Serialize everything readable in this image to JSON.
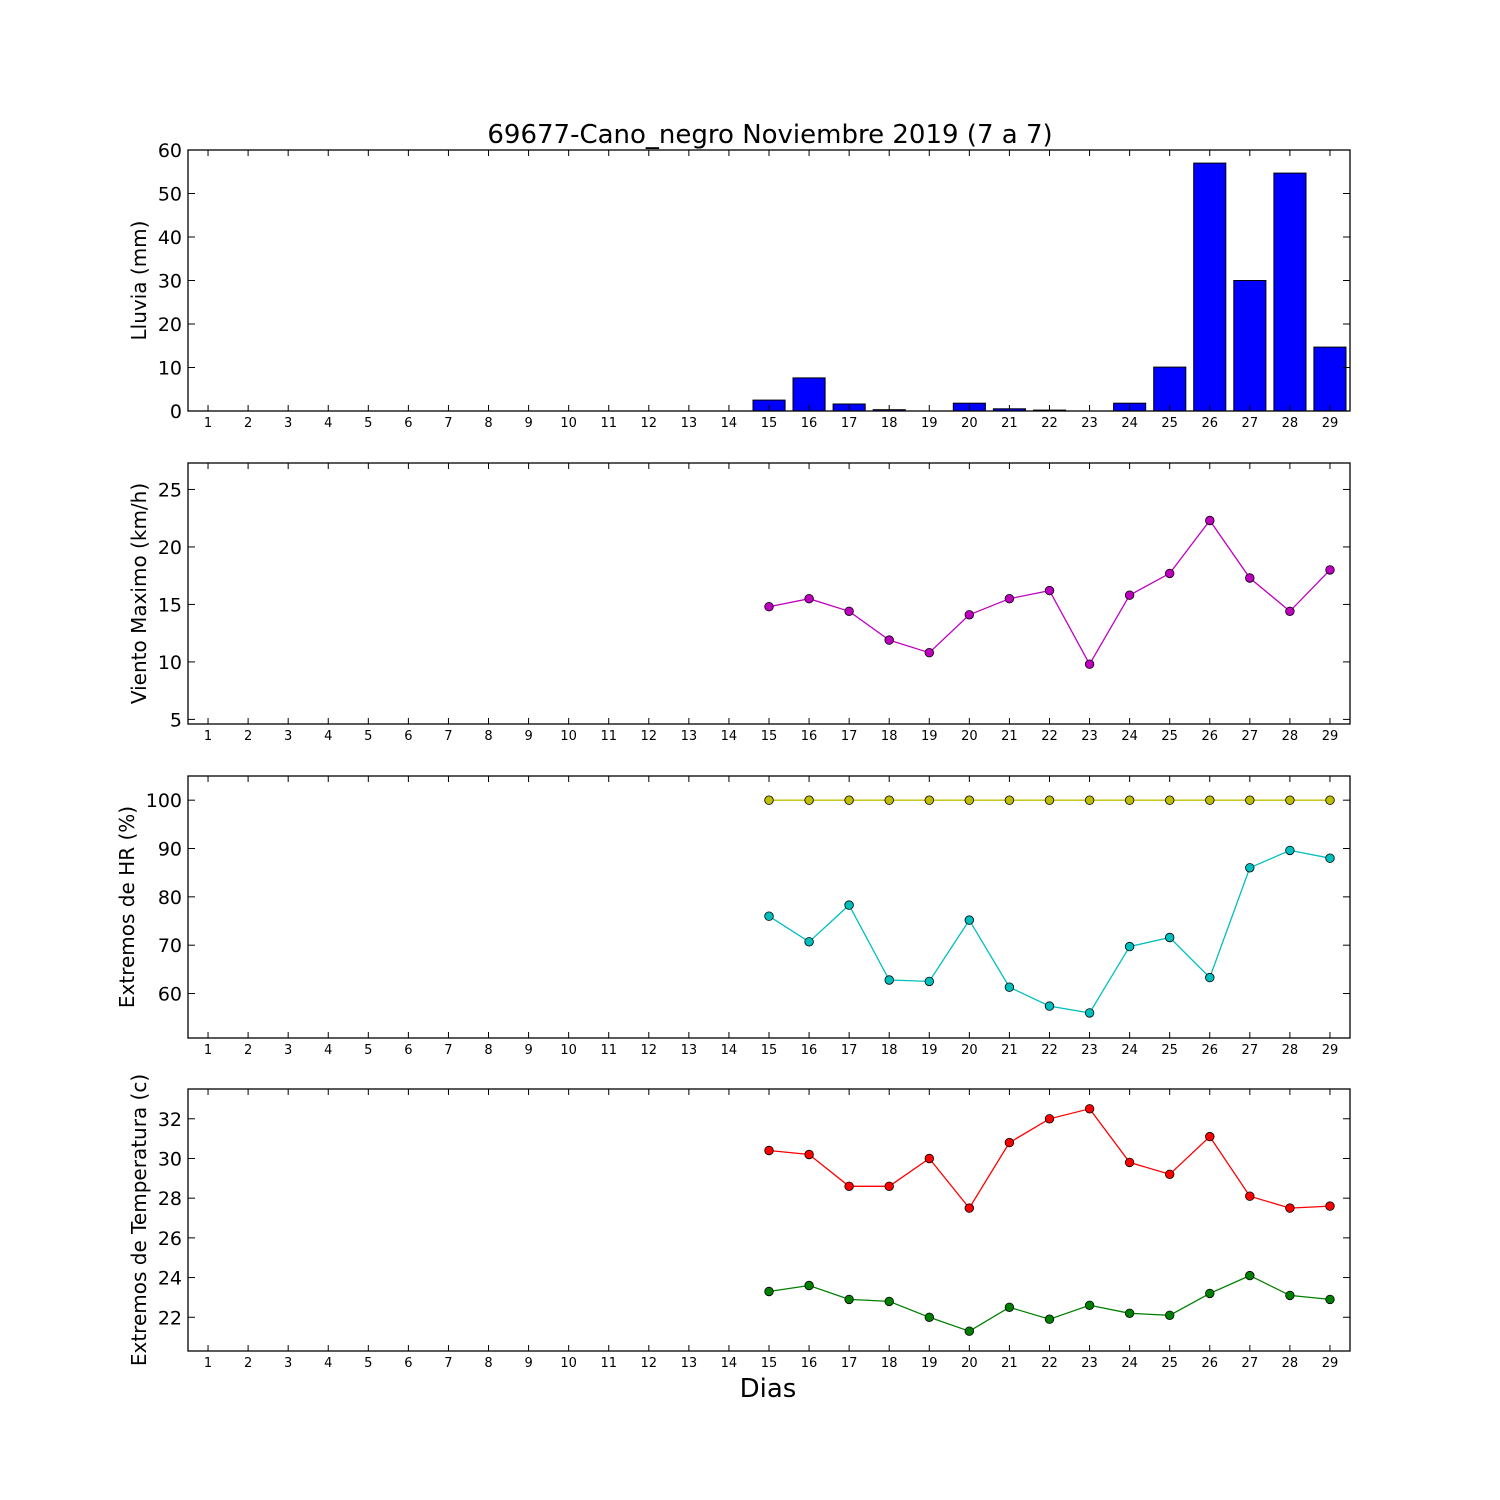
{
  "title": "69677-Cano_negro Noviembre 2019  (7 a 7)",
  "xlabel": "Dias",
  "colors": {
    "rain": "#0000ff",
    "wind": "#bf00bf",
    "hr_max": "#bfbf00",
    "hr_min": "#00bfbf",
    "temp_max": "#ff0000",
    "temp_min": "#008000"
  },
  "chart_data": [
    {
      "type": "bar",
      "ylabel": "Lluvia (mm)",
      "ylim": [
        0,
        60
      ],
      "yticks": [
        0,
        10,
        20,
        30,
        40,
        50,
        60
      ],
      "xlim": [
        0.5,
        29.5
      ],
      "x_ticks": [
        1,
        2,
        3,
        4,
        5,
        6,
        7,
        8,
        9,
        10,
        11,
        12,
        13,
        14,
        15,
        16,
        17,
        18,
        19,
        20,
        21,
        22,
        23,
        24,
        25,
        26,
        27,
        28,
        29
      ],
      "series": [
        {
          "color_key": "rain",
          "x": [
            15,
            16,
            17,
            18,
            19,
            20,
            21,
            22,
            23,
            24,
            25,
            26,
            27,
            28,
            29
          ],
          "values": [
            2.5,
            7.6,
            1.6,
            0.3,
            0.0,
            1.8,
            0.5,
            0.2,
            0.0,
            1.8,
            10.1,
            57.0,
            30.0,
            54.7,
            14.7
          ]
        }
      ]
    },
    {
      "type": "line",
      "ylabel": "Viento Maximo (km/h)",
      "ylim": [
        4.6,
        27.3
      ],
      "yticks": [
        5,
        10,
        15,
        20,
        25
      ],
      "xlim": [
        0.5,
        29.5
      ],
      "x_ticks": [
        1,
        2,
        3,
        4,
        5,
        6,
        7,
        8,
        9,
        10,
        11,
        12,
        13,
        14,
        15,
        16,
        17,
        18,
        19,
        20,
        21,
        22,
        23,
        24,
        25,
        26,
        27,
        28,
        29
      ],
      "series": [
        {
          "color_key": "wind",
          "x": [
            15,
            16,
            17,
            18,
            19,
            20,
            21,
            22,
            23,
            24,
            25,
            26,
            27,
            28,
            29
          ],
          "values": [
            14.8,
            15.5,
            14.4,
            11.9,
            10.8,
            14.1,
            15.5,
            16.2,
            9.8,
            15.8,
            17.7,
            22.3,
            17.3,
            14.4,
            18.0
          ]
        }
      ]
    },
    {
      "type": "line",
      "ylabel": "Extremos de HR (%)",
      "ylim": [
        50.8,
        105
      ],
      "yticks": [
        60,
        70,
        80,
        90,
        100
      ],
      "xlim": [
        0.5,
        29.5
      ],
      "x_ticks": [
        1,
        2,
        3,
        4,
        5,
        6,
        7,
        8,
        9,
        10,
        11,
        12,
        13,
        14,
        15,
        16,
        17,
        18,
        19,
        20,
        21,
        22,
        23,
        24,
        25,
        26,
        27,
        28,
        29
      ],
      "series": [
        {
          "color_key": "hr_max",
          "x": [
            15,
            16,
            17,
            18,
            19,
            20,
            21,
            22,
            23,
            24,
            25,
            26,
            27,
            28,
            29
          ],
          "values": [
            100,
            100,
            100,
            100,
            100,
            100,
            100,
            100,
            100,
            100,
            100,
            100,
            100,
            100,
            100
          ]
        },
        {
          "color_key": "hr_min",
          "x": [
            15,
            16,
            17,
            18,
            19,
            20,
            21,
            22,
            23,
            24,
            25,
            26,
            27,
            28,
            29
          ],
          "values": [
            76.0,
            70.7,
            78.3,
            62.8,
            62.5,
            75.2,
            61.3,
            57.4,
            56.0,
            69.7,
            71.6,
            63.3,
            86.0,
            89.6,
            88.0
          ]
        }
      ]
    },
    {
      "type": "line",
      "ylabel": "Extremos de Temperatura (c)",
      "ylim": [
        20.3,
        33.5
      ],
      "yticks": [
        22,
        24,
        26,
        28,
        30,
        32
      ],
      "xlim": [
        0.5,
        29.5
      ],
      "x_ticks": [
        1,
        2,
        3,
        4,
        5,
        6,
        7,
        8,
        9,
        10,
        11,
        12,
        13,
        14,
        15,
        16,
        17,
        18,
        19,
        20,
        21,
        22,
        23,
        24,
        25,
        26,
        27,
        28,
        29
      ],
      "series": [
        {
          "color_key": "temp_max",
          "x": [
            15,
            16,
            17,
            18,
            19,
            20,
            21,
            22,
            23,
            24,
            25,
            26,
            27,
            28,
            29
          ],
          "values": [
            30.4,
            30.2,
            28.6,
            28.6,
            30.0,
            27.5,
            30.8,
            32.0,
            32.5,
            29.8,
            29.2,
            31.1,
            28.1,
            27.5,
            27.6
          ]
        },
        {
          "color_key": "temp_min",
          "x": [
            15,
            16,
            17,
            18,
            19,
            20,
            21,
            22,
            23,
            24,
            25,
            26,
            27,
            28,
            29
          ],
          "values": [
            23.3,
            23.6,
            22.9,
            22.8,
            22.0,
            21.3,
            22.5,
            21.9,
            22.6,
            22.2,
            22.1,
            23.2,
            24.1,
            23.1,
            22.9
          ]
        }
      ]
    }
  ]
}
